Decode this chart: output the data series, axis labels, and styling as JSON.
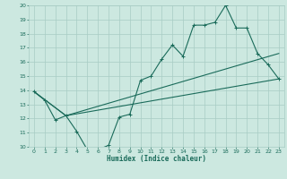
{
  "xlabel": "Humidex (Indice chaleur)",
  "xlim": [
    -0.5,
    23.5
  ],
  "ylim": [
    10,
    20
  ],
  "yticks": [
    10,
    11,
    12,
    13,
    14,
    15,
    16,
    17,
    18,
    19,
    20
  ],
  "xticks": [
    0,
    1,
    2,
    3,
    4,
    5,
    6,
    7,
    8,
    9,
    10,
    11,
    12,
    13,
    14,
    15,
    16,
    17,
    18,
    19,
    20,
    21,
    22,
    23
  ],
  "bg_color": "#cce8e0",
  "grid_color": "#a8ccc4",
  "line_color": "#1a6b5a",
  "line1_x": [
    0,
    1,
    2,
    3,
    4,
    5,
    6,
    7,
    8,
    9,
    10,
    11,
    12,
    13,
    14,
    15,
    16,
    17,
    18,
    19,
    20,
    21,
    22,
    23
  ],
  "line1_y": [
    13.9,
    13.3,
    11.9,
    12.2,
    11.1,
    9.8,
    9.8,
    10.1,
    12.1,
    12.3,
    14.7,
    15.0,
    16.2,
    17.2,
    16.4,
    18.6,
    18.6,
    18.8,
    20.0,
    18.4,
    18.4,
    16.6,
    15.8,
    14.8
  ],
  "line2_x": [
    0,
    3,
    23
  ],
  "line2_y": [
    13.9,
    12.2,
    14.8
  ],
  "line3_x": [
    0,
    3,
    23
  ],
  "line3_y": [
    13.9,
    12.2,
    16.6
  ]
}
